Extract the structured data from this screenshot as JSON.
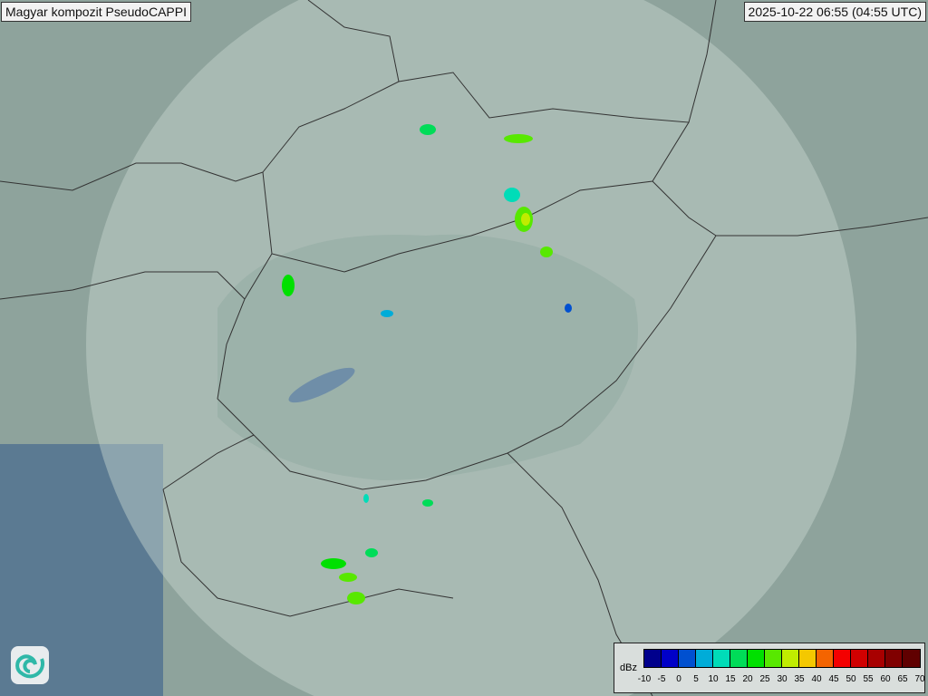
{
  "header": {
    "title": "Magyar kompozit  PseudoCAPPI",
    "timestamp": "2025-10-22 06:55 (04:55 UTC)"
  },
  "legend": {
    "unit": "dBz",
    "ticks": [
      "-10",
      "-5",
      "0",
      "5",
      "10",
      "15",
      "20",
      "25",
      "30",
      "35",
      "40",
      "45",
      "50",
      "55",
      "60",
      "65",
      "70"
    ],
    "colors": [
      "#00008c",
      "#0000c8",
      "#0050d0",
      "#00acd8",
      "#00dcb8",
      "#00dc58",
      "#00e000",
      "#58e800",
      "#c0ec00",
      "#f4c800",
      "#f46400",
      "#f40000",
      "#d00000",
      "#a80000",
      "#800000",
      "#600000"
    ]
  },
  "map": {
    "background": "#7f9690",
    "coverage_color": "#c8d6d0",
    "border_color": "#333333"
  }
}
